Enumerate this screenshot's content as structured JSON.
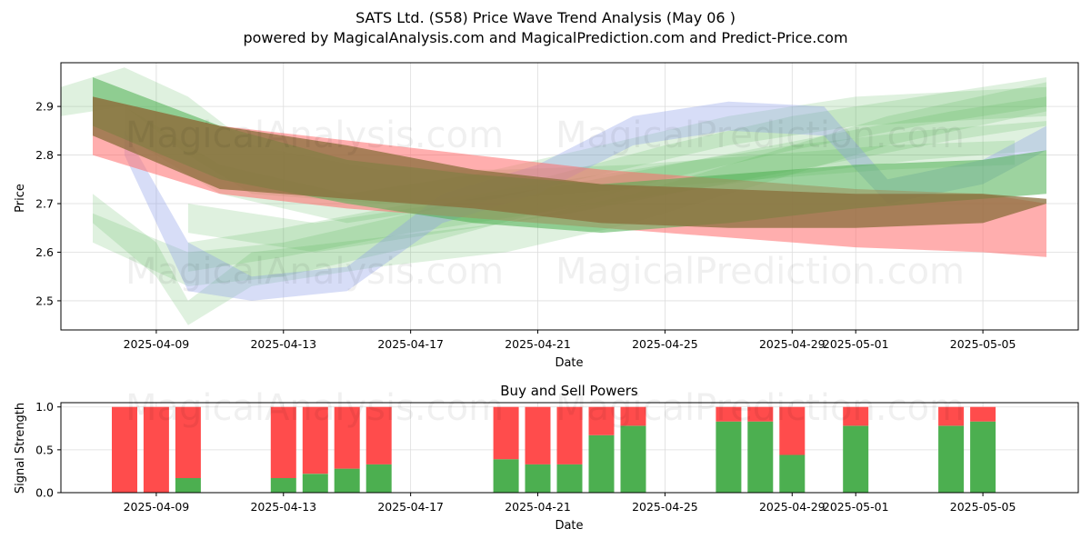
{
  "header": {
    "title": "SATS Ltd. (S58) Price Wave Trend Analysis (May 06 )",
    "subtitle": "powered by MagicalAnalysis.com and MagicalPrediction.com and Predict-Price.com"
  },
  "watermarks": [
    "MagicalAnalysis.com",
    "MagicalPrediction.com"
  ],
  "colors": {
    "green_band": "#4caf50",
    "blue_band": "#8c9fe8",
    "red_band": "#ff6b6b",
    "brown_band": "#8a6d3b",
    "buy_bar": "#4caf50",
    "sell_bar": "#ff4c4c"
  },
  "chart_data": [
    {
      "type": "area",
      "name": "price-wave",
      "xlabel": "Date",
      "ylabel": "Price",
      "xlim": [
        "2025-04-06",
        "2025-05-08"
      ],
      "ylim": [
        2.44,
        2.99
      ],
      "x_ticks": [
        "2025-04-09",
        "2025-04-13",
        "2025-04-17",
        "2025-04-21",
        "2025-04-25",
        "2025-04-29",
        "2025-05-01",
        "2025-05-05"
      ],
      "y_ticks": [
        2.5,
        2.6,
        2.7,
        2.8,
        2.9
      ],
      "grid": true,
      "bands": [
        {
          "color": "red",
          "x": [
            "2025-04-07",
            "2025-04-11",
            "2025-04-15",
            "2025-04-19",
            "2025-04-23",
            "2025-04-27",
            "2025-05-01",
            "2025-05-05",
            "2025-05-07"
          ],
          "upper": [
            2.92,
            2.86,
            2.83,
            2.8,
            2.77,
            2.75,
            2.73,
            2.72,
            2.7
          ],
          "lower": [
            2.8,
            2.72,
            2.69,
            2.67,
            2.65,
            2.63,
            2.61,
            2.6,
            2.59
          ]
        },
        {
          "color": "brown",
          "x": [
            "2025-04-07",
            "2025-04-11",
            "2025-04-15",
            "2025-04-19",
            "2025-04-23",
            "2025-04-27",
            "2025-05-01",
            "2025-05-05",
            "2025-05-07"
          ],
          "upper": [
            2.92,
            2.86,
            2.82,
            2.77,
            2.74,
            2.73,
            2.72,
            2.72,
            2.71
          ],
          "lower": [
            2.84,
            2.73,
            2.71,
            2.69,
            2.66,
            2.65,
            2.65,
            2.66,
            2.7
          ]
        },
        {
          "color": "green",
          "x": [
            "2025-04-07",
            "2025-04-11",
            "2025-04-15",
            "2025-04-19",
            "2025-04-23",
            "2025-04-27",
            "2025-05-01",
            "2025-05-05",
            "2025-05-07"
          ],
          "upper": [
            2.96,
            2.86,
            2.79,
            2.76,
            2.74,
            2.76,
            2.78,
            2.79,
            2.81
          ],
          "lower": [
            2.86,
            2.75,
            2.7,
            2.66,
            2.64,
            2.66,
            2.69,
            2.71,
            2.72
          ]
        },
        {
          "color": "blue",
          "x": [
            "2025-04-08",
            "2025-04-10",
            "2025-04-12",
            "2025-04-15",
            "2025-04-18",
            "2025-04-21",
            "2025-04-24",
            "2025-04-27",
            "2025-04-30",
            "2025-05-02",
            "2025-05-05",
            "2025-05-07"
          ],
          "upper": [
            2.85,
            2.62,
            2.55,
            2.57,
            2.72,
            2.78,
            2.88,
            2.91,
            2.9,
            2.75,
            2.79,
            2.86
          ],
          "lower": [
            2.8,
            2.52,
            2.5,
            2.52,
            2.66,
            2.72,
            2.82,
            2.85,
            2.84,
            2.7,
            2.74,
            2.81
          ]
        },
        {
          "color": "lightgreen",
          "x": [
            "2025-04-06",
            "2025-04-08",
            "2025-04-10",
            "2025-04-12",
            "2025-04-16",
            "2025-04-20",
            "2025-04-24",
            "2025-04-28",
            "2025-05-02",
            "2025-05-06"
          ],
          "upper": [
            2.94,
            2.98,
            2.92,
            2.82,
            2.77,
            2.77,
            2.78,
            2.8,
            2.82,
            2.83
          ],
          "lower": [
            2.88,
            2.9,
            2.8,
            2.72,
            2.7,
            2.71,
            2.73,
            2.75,
            2.77,
            2.78
          ]
        },
        {
          "color": "lightgreen",
          "x": [
            "2025-04-07",
            "2025-04-09",
            "2025-04-10",
            "2025-04-12",
            "2025-04-16",
            "2025-04-20",
            "2025-04-24",
            "2025-04-28",
            "2025-05-02",
            "2025-05-07"
          ],
          "upper": [
            2.72,
            2.62,
            2.5,
            2.6,
            2.63,
            2.66,
            2.72,
            2.8,
            2.88,
            2.95
          ],
          "lower": [
            2.66,
            2.55,
            2.45,
            2.53,
            2.57,
            2.6,
            2.66,
            2.74,
            2.82,
            2.89
          ]
        },
        {
          "color": "lightgreen",
          "x": [
            "2025-04-07",
            "2025-04-10",
            "2025-04-13",
            "2025-04-17",
            "2025-04-21",
            "2025-04-25",
            "2025-04-29",
            "2025-05-03",
            "2025-05-07"
          ],
          "upper": [
            2.68,
            2.6,
            2.62,
            2.68,
            2.75,
            2.82,
            2.88,
            2.92,
            2.96
          ],
          "lower": [
            2.62,
            2.53,
            2.55,
            2.61,
            2.68,
            2.75,
            2.81,
            2.86,
            2.9
          ]
        },
        {
          "color": "lightgreen",
          "x": [
            "2025-04-08",
            "2025-04-11",
            "2025-04-15",
            "2025-04-19",
            "2025-04-23",
            "2025-04-27",
            "2025-05-01",
            "2025-05-07"
          ],
          "upper": [
            2.9,
            2.78,
            2.72,
            2.76,
            2.82,
            2.88,
            2.92,
            2.94
          ],
          "lower": [
            2.84,
            2.72,
            2.66,
            2.7,
            2.76,
            2.82,
            2.86,
            2.88
          ]
        },
        {
          "color": "lightgreen",
          "x": [
            "2025-04-10",
            "2025-04-13",
            "2025-04-17",
            "2025-04-21",
            "2025-04-25",
            "2025-04-29",
            "2025-05-03",
            "2025-05-07"
          ],
          "upper": [
            2.62,
            2.65,
            2.7,
            2.74,
            2.78,
            2.82,
            2.85,
            2.87
          ],
          "lower": [
            2.56,
            2.59,
            2.64,
            2.68,
            2.72,
            2.76,
            2.79,
            2.81
          ]
        },
        {
          "color": "lightgreen",
          "x": [
            "2025-04-10",
            "2025-04-14",
            "2025-04-18",
            "2025-04-22",
            "2025-04-26",
            "2025-04-30",
            "2025-05-04",
            "2025-05-07"
          ],
          "upper": [
            2.7,
            2.66,
            2.7,
            2.74,
            2.79,
            2.84,
            2.89,
            2.92
          ],
          "lower": [
            2.64,
            2.6,
            2.64,
            2.68,
            2.73,
            2.78,
            2.83,
            2.86
          ]
        }
      ]
    },
    {
      "type": "bar",
      "name": "buy-sell-powers",
      "title": "Buy and Sell Powers",
      "xlabel": "Date",
      "ylabel": "Signal Strength",
      "xlim": [
        "2025-04-06",
        "2025-05-08"
      ],
      "ylim": [
        0,
        1.05
      ],
      "x_ticks": [
        "2025-04-09",
        "2025-04-13",
        "2025-04-17",
        "2025-04-21",
        "2025-04-25",
        "2025-04-29",
        "2025-05-01",
        "2025-05-05"
      ],
      "y_ticks": [
        0.0,
        0.5,
        1.0
      ],
      "y_tick_labels": [
        "0.0",
        "0.5",
        "1.0"
      ],
      "grid": true,
      "x": [
        "2025-04-08",
        "2025-04-09",
        "2025-04-10",
        "2025-04-13",
        "2025-04-14",
        "2025-04-15",
        "2025-04-16",
        "2025-04-20",
        "2025-04-21",
        "2025-04-22",
        "2025-04-23",
        "2025-04-24",
        "2025-04-27",
        "2025-04-28",
        "2025-04-29",
        "2025-05-01",
        "2025-05-04",
        "2025-05-05"
      ],
      "series": [
        {
          "name": "buy",
          "values": [
            0.0,
            0.0,
            0.17,
            0.17,
            0.22,
            0.28,
            0.33,
            0.39,
            0.33,
            0.33,
            0.67,
            0.78,
            0.83,
            0.83,
            0.44,
            0.78,
            0.78,
            0.83
          ]
        },
        {
          "name": "sell",
          "values": [
            1.0,
            1.0,
            0.83,
            0.83,
            0.78,
            0.72,
            0.67,
            0.61,
            0.67,
            0.67,
            0.33,
            0.22,
            0.17,
            0.17,
            0.56,
            0.22,
            0.22,
            0.17
          ]
        }
      ]
    }
  ]
}
